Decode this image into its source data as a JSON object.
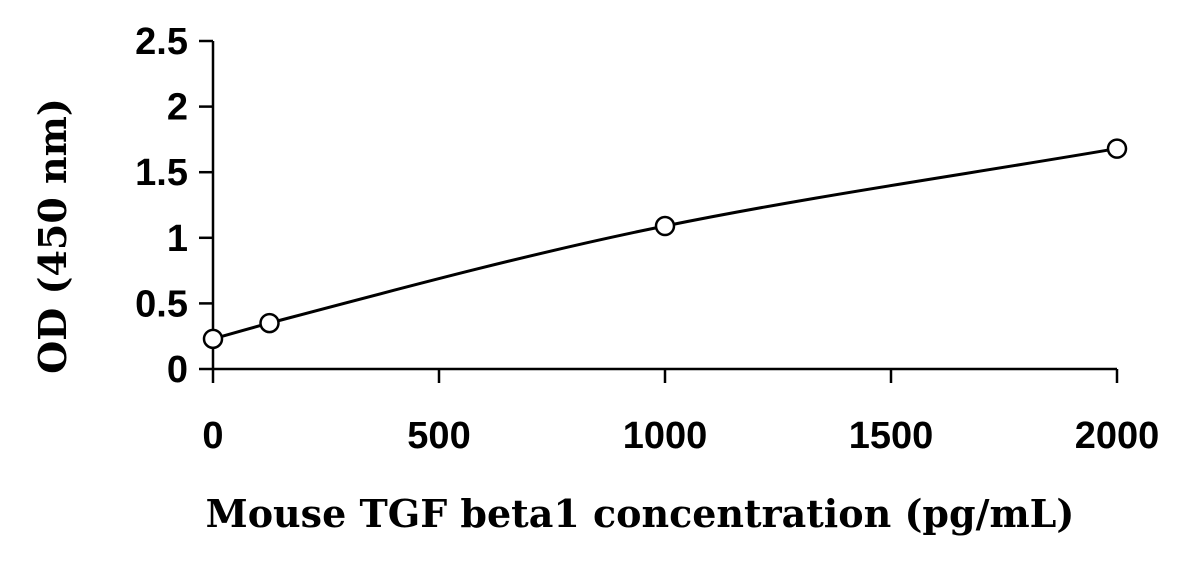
{
  "chart_data": {
    "type": "scatter",
    "title": "",
    "xlabel": "Mouse TGF beta1 concentration (pg/mL)",
    "ylabel": "OD (450 nm)",
    "xlim": [
      0,
      2000
    ],
    "ylim": [
      0,
      2.5
    ],
    "xticks": [
      0,
      500,
      1000,
      1500,
      2000
    ],
    "xtick_labels": [
      "0",
      "500",
      "1000",
      "1500",
      "2000"
    ],
    "yticks": [
      0,
      0.5,
      1,
      1.5,
      2,
      2.5
    ],
    "ytick_labels": [
      "0",
      "0.5",
      "1",
      "1.5",
      "2",
      "2.5"
    ],
    "grid": false,
    "legend": "none",
    "series": [
      {
        "points": [
          {
            "x": 0,
            "y": 0.23
          },
          {
            "x": 125,
            "y": 0.35
          },
          {
            "x": 1000,
            "y": 1.09
          },
          {
            "x": 2000,
            "y": 1.68
          }
        ],
        "marker": "open-circle",
        "color": "#000000"
      }
    ],
    "trendline": {
      "type": "smooth curve through points",
      "color": "#000000"
    }
  }
}
